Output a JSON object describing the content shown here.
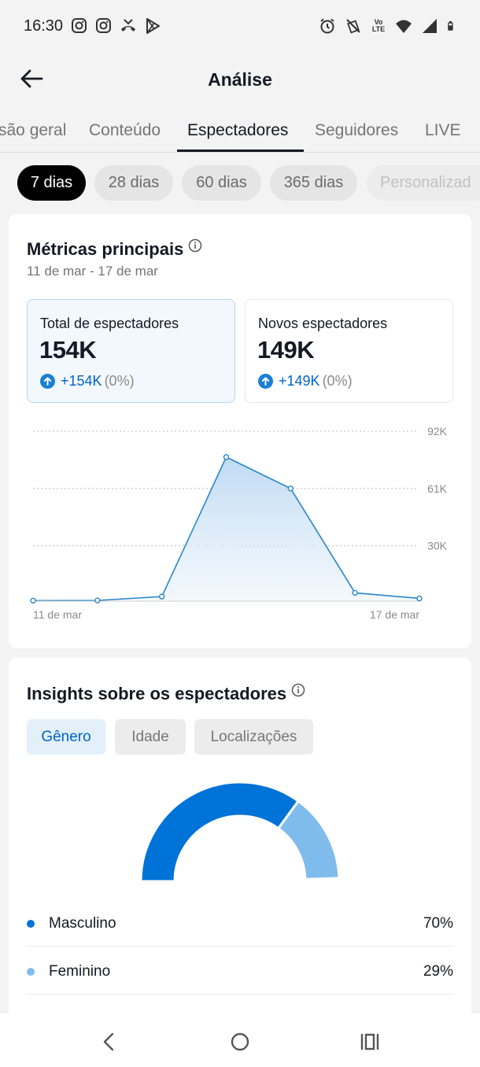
{
  "status_bar": {
    "time": "16:30",
    "left_icons": [
      "instagram-icon",
      "instagram-icon",
      "missed-call-icon",
      "play-store-icon"
    ],
    "right_icons": [
      "alarm-icon",
      "vibrate-off-icon",
      "volte-icon",
      "wifi-icon",
      "signal-icon",
      "battery-icon"
    ],
    "volte_text": "Vo LTE"
  },
  "header": {
    "title": "Análise",
    "back_icon": "arrow-left-icon"
  },
  "tabs": [
    {
      "label": "Visão geral",
      "visible": "são geral"
    },
    {
      "label": "Conteúdo"
    },
    {
      "label": "Espectadores",
      "active": true
    },
    {
      "label": "Seguidores"
    },
    {
      "label": "LIVE"
    }
  ],
  "ranges": [
    {
      "label": "7 dias",
      "active": true
    },
    {
      "label": "28 dias"
    },
    {
      "label": "60 dias"
    },
    {
      "label": "365 dias"
    },
    {
      "label": "Personalizad"
    }
  ],
  "metrics_card": {
    "title": "Métricas principais",
    "date_range": "11 de mar - 17 de mar",
    "metrics": [
      {
        "label": "Total de espectadores",
        "value": "154K",
        "change": "+154K",
        "change_pct": "(0%)",
        "selected": true
      },
      {
        "label": "Novos espectadores",
        "value": "149K",
        "change": "+149K",
        "change_pct": "(0%)",
        "selected": false
      }
    ]
  },
  "chart_data": {
    "type": "area",
    "x": [
      "11 de mar",
      "12 de mar",
      "13 de mar",
      "14 de mar",
      "15 de mar",
      "16 de mar",
      "17 de mar"
    ],
    "x_tick_labels": [
      "11 de mar",
      "17 de mar"
    ],
    "series": [
      {
        "values": [
          300,
          400,
          2500,
          78000,
          61000,
          4500,
          1500
        ]
      }
    ],
    "y_ticks": [
      30000,
      61000,
      92000
    ],
    "y_tick_labels": [
      "30K",
      "61K",
      "92K"
    ],
    "ylim": [
      0,
      92000
    ],
    "grid": true,
    "color": "#2b87c8"
  },
  "insights_card": {
    "title": "Insights sobre os espectadores",
    "segments": [
      {
        "label": "Gênero",
        "active": true
      },
      {
        "label": "Idade"
      },
      {
        "label": "Localizações"
      }
    ],
    "gender": [
      {
        "name": "Masculino",
        "pct_label": "70%",
        "value": 70,
        "color": "#0073d9"
      },
      {
        "name": "Feminino",
        "pct_label": "29%",
        "value": 29,
        "color": "#7fbcec"
      }
    ]
  },
  "nav_bar": {
    "icons": [
      "back-nav-icon",
      "home-nav-icon",
      "recents-nav-icon"
    ]
  }
}
